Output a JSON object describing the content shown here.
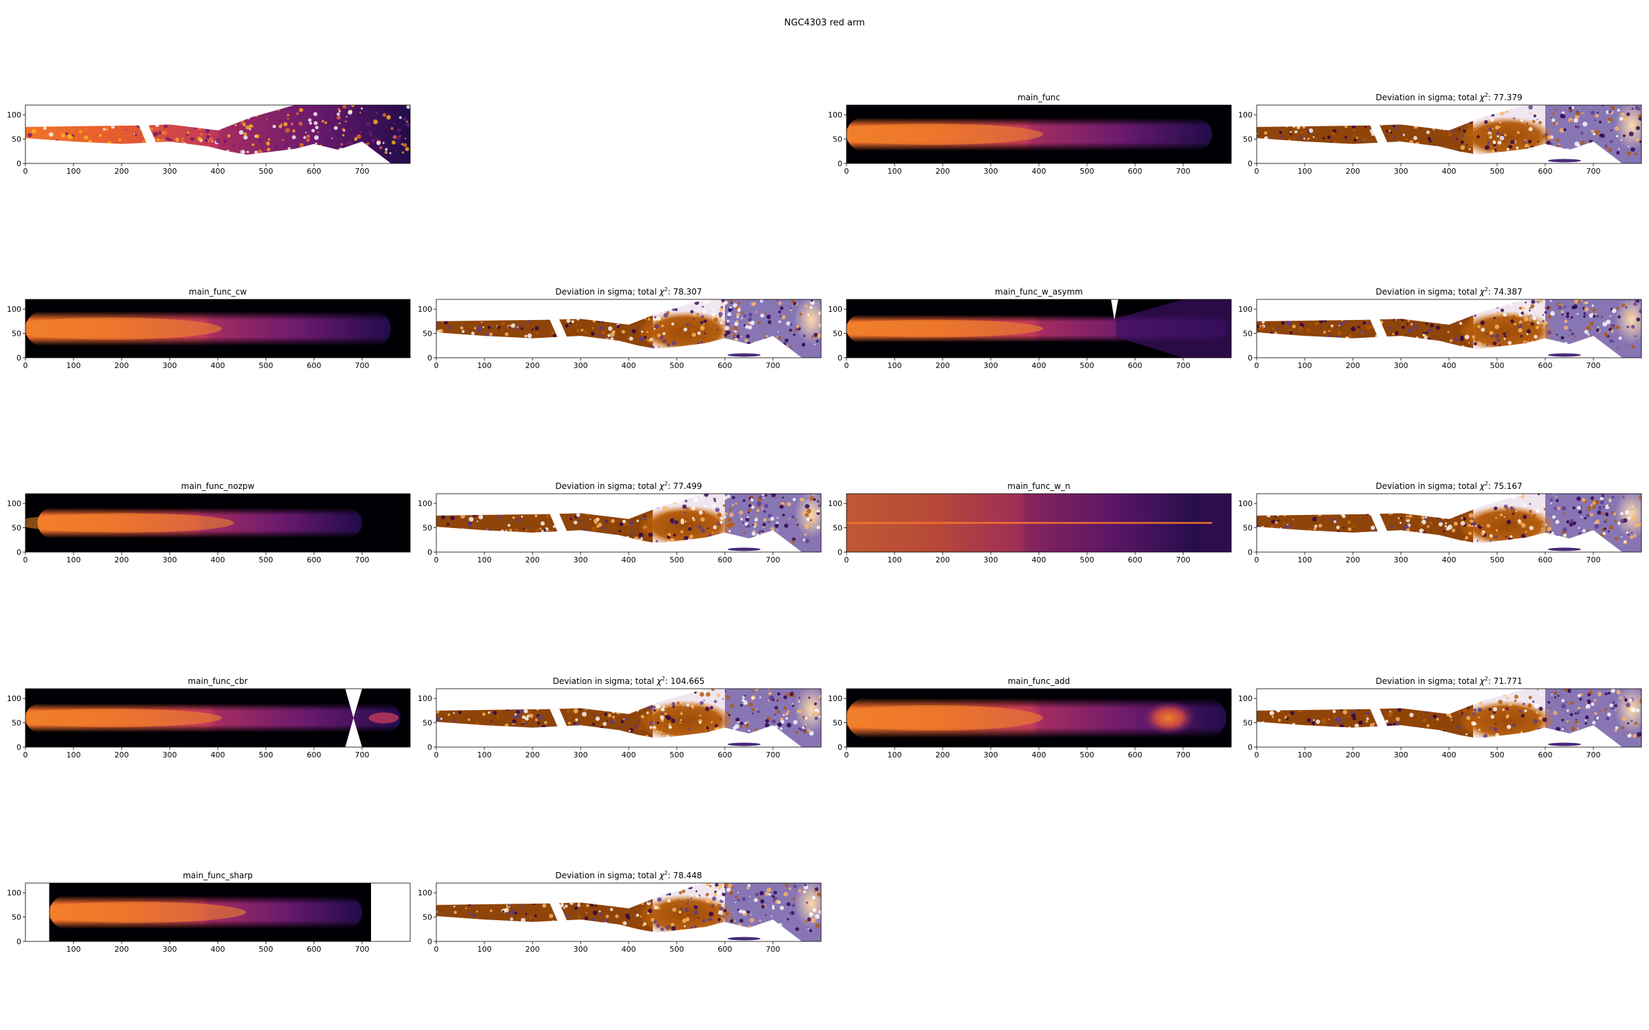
{
  "figure": {
    "title": "NGC4303 red arm"
  },
  "chart_data": [
    {
      "type": "heatmap",
      "kind": "data",
      "title": "",
      "col": 0,
      "row": 0,
      "xlim": [
        0,
        800
      ],
      "ylim": [
        0,
        120
      ],
      "xticks": [
        0,
        100,
        200,
        300,
        400,
        500,
        600,
        700
      ],
      "yticks": [
        0,
        50,
        100
      ]
    },
    {
      "type": "heatmap",
      "kind": "model",
      "title": "main_func",
      "col": 2,
      "row": 0,
      "xlim": [
        0,
        800
      ],
      "ylim": [
        0,
        120
      ],
      "xticks": [
        0,
        100,
        200,
        300,
        400,
        500,
        600,
        700
      ],
      "yticks": [
        0,
        50,
        100
      ]
    },
    {
      "type": "heatmap",
      "kind": "residual",
      "title_prefix": "Deviation in sigma; total ",
      "chi2_value": "77.379",
      "col": 3,
      "row": 0,
      "xlim": [
        0,
        800
      ],
      "ylim": [
        0,
        120
      ],
      "xticks": [
        0,
        100,
        200,
        300,
        400,
        500,
        600,
        700
      ],
      "yticks": [
        0,
        50,
        100
      ]
    },
    {
      "type": "heatmap",
      "kind": "model",
      "title": "main_func_cw",
      "col": 0,
      "row": 1,
      "xlim": [
        0,
        800
      ],
      "ylim": [
        0,
        120
      ],
      "xticks": [
        0,
        100,
        200,
        300,
        400,
        500,
        600,
        700
      ],
      "yticks": [
        0,
        50,
        100
      ]
    },
    {
      "type": "heatmap",
      "kind": "residual",
      "title_prefix": "Deviation in sigma; total ",
      "chi2_value": "78.307",
      "col": 1,
      "row": 1,
      "xlim": [
        0,
        800
      ],
      "ylim": [
        0,
        120
      ],
      "xticks": [
        0,
        100,
        200,
        300,
        400,
        500,
        600,
        700
      ],
      "yticks": [
        0,
        50,
        100
      ]
    },
    {
      "type": "heatmap",
      "kind": "model",
      "title": "main_func_w_asymm",
      "col": 2,
      "row": 1,
      "xlim": [
        0,
        800
      ],
      "ylim": [
        0,
        120
      ],
      "xticks": [
        0,
        100,
        200,
        300,
        400,
        500,
        600,
        700
      ],
      "yticks": [
        0,
        50,
        100
      ]
    },
    {
      "type": "heatmap",
      "kind": "residual",
      "title_prefix": "Deviation in sigma; total ",
      "chi2_value": "74.387",
      "col": 3,
      "row": 1,
      "xlim": [
        0,
        800
      ],
      "ylim": [
        0,
        120
      ],
      "xticks": [
        0,
        100,
        200,
        300,
        400,
        500,
        600,
        700
      ],
      "yticks": [
        0,
        50,
        100
      ]
    },
    {
      "type": "heatmap",
      "kind": "model",
      "title": "main_func_nozpw",
      "col": 0,
      "row": 2,
      "xlim": [
        0,
        800
      ],
      "ylim": [
        0,
        120
      ],
      "xticks": [
        0,
        100,
        200,
        300,
        400,
        500,
        600,
        700
      ],
      "yticks": [
        0,
        50,
        100
      ]
    },
    {
      "type": "heatmap",
      "kind": "residual",
      "title_prefix": "Deviation in sigma; total ",
      "chi2_value": "77.499",
      "col": 1,
      "row": 2,
      "xlim": [
        0,
        800
      ],
      "ylim": [
        0,
        120
      ],
      "xticks": [
        0,
        100,
        200,
        300,
        400,
        500,
        600,
        700
      ],
      "yticks": [
        0,
        50,
        100
      ]
    },
    {
      "type": "heatmap",
      "kind": "model",
      "title": "main_func_w_n",
      "col": 2,
      "row": 2,
      "xlim": [
        0,
        800
      ],
      "ylim": [
        0,
        120
      ],
      "xticks": [
        0,
        100,
        200,
        300,
        400,
        500,
        600,
        700
      ],
      "yticks": [
        0,
        50,
        100
      ]
    },
    {
      "type": "heatmap",
      "kind": "residual",
      "title_prefix": "Deviation in sigma; total ",
      "chi2_value": "75.167",
      "col": 3,
      "row": 2,
      "xlim": [
        0,
        800
      ],
      "ylim": [
        0,
        120
      ],
      "xticks": [
        0,
        100,
        200,
        300,
        400,
        500,
        600,
        700
      ],
      "yticks": [
        0,
        50,
        100
      ]
    },
    {
      "type": "heatmap",
      "kind": "model",
      "title": "main_func_cbr",
      "col": 0,
      "row": 3,
      "xlim": [
        0,
        800
      ],
      "ylim": [
        0,
        120
      ],
      "xticks": [
        0,
        100,
        200,
        300,
        400,
        500,
        600,
        700
      ],
      "yticks": [
        0,
        50,
        100
      ]
    },
    {
      "type": "heatmap",
      "kind": "residual",
      "title_prefix": "Deviation in sigma; total ",
      "chi2_value": "104.665",
      "col": 1,
      "row": 3,
      "xlim": [
        0,
        800
      ],
      "ylim": [
        0,
        120
      ],
      "xticks": [
        0,
        100,
        200,
        300,
        400,
        500,
        600,
        700
      ],
      "yticks": [
        0,
        50,
        100
      ]
    },
    {
      "type": "heatmap",
      "kind": "model",
      "title": "main_func_add",
      "col": 2,
      "row": 3,
      "xlim": [
        0,
        800
      ],
      "ylim": [
        0,
        120
      ],
      "xticks": [
        0,
        100,
        200,
        300,
        400,
        500,
        600,
        700
      ],
      "yticks": [
        0,
        50,
        100
      ]
    },
    {
      "type": "heatmap",
      "kind": "residual",
      "title_prefix": "Deviation in sigma; total ",
      "chi2_value": "71.771",
      "col": 3,
      "row": 3,
      "xlim": [
        0,
        800
      ],
      "ylim": [
        0,
        120
      ],
      "xticks": [
        0,
        100,
        200,
        300,
        400,
        500,
        600,
        700
      ],
      "yticks": [
        0,
        50,
        100
      ]
    },
    {
      "type": "heatmap",
      "kind": "model",
      "title": "main_func_sharp",
      "col": 0,
      "row": 4,
      "xlim": [
        0,
        800
      ],
      "ylim": [
        0,
        120
      ],
      "xticks": [
        100,
        200,
        300,
        400,
        500,
        600,
        700
      ],
      "yticks": [
        0,
        50,
        100
      ]
    },
    {
      "type": "heatmap",
      "kind": "residual",
      "title_prefix": "Deviation in sigma; total ",
      "chi2_value": "78.448",
      "col": 1,
      "row": 4,
      "xlim": [
        0,
        800
      ],
      "ylim": [
        0,
        120
      ],
      "xticks": [
        0,
        100,
        200,
        300,
        400,
        500,
        600,
        700
      ],
      "yticks": [
        0,
        50,
        100
      ]
    }
  ],
  "colors": {
    "model_colormap": [
      "#000004",
      "#320a5e",
      "#781c6d",
      "#bc3754",
      "#ed6925",
      "#fbb61a"
    ],
    "residual_colormap": [
      "#2d004b",
      "#8073ac",
      "#f7f7f7",
      "#e08214",
      "#7f3b08"
    ],
    "axes": "#000000"
  }
}
